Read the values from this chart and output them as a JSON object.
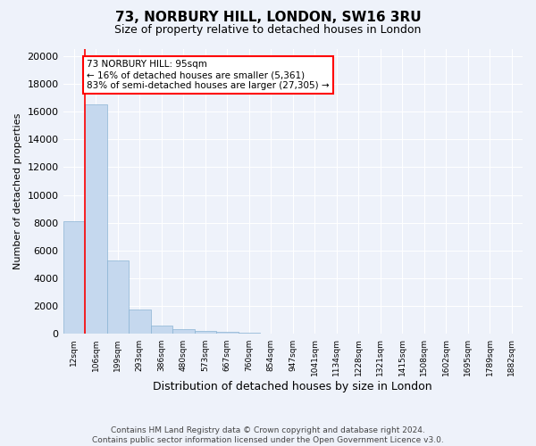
{
  "title": "73, NORBURY HILL, LONDON, SW16 3RU",
  "subtitle": "Size of property relative to detached houses in London",
  "xlabel": "Distribution of detached houses by size in London",
  "ylabel": "Number of detached properties",
  "footer_line1": "Contains HM Land Registry data © Crown copyright and database right 2024.",
  "footer_line2": "Contains public sector information licensed under the Open Government Licence v3.0.",
  "bar_labels": [
    "12sqm",
    "106sqm",
    "199sqm",
    "293sqm",
    "386sqm",
    "480sqm",
    "573sqm",
    "667sqm",
    "760sqm",
    "854sqm",
    "947sqm",
    "1041sqm",
    "1134sqm",
    "1228sqm",
    "1321sqm",
    "1415sqm",
    "1508sqm",
    "1602sqm",
    "1695sqm",
    "1789sqm",
    "1882sqm"
  ],
  "bar_values": [
    8100,
    16500,
    5300,
    1750,
    620,
    330,
    190,
    130,
    100,
    0,
    0,
    0,
    0,
    0,
    0,
    0,
    0,
    0,
    0,
    0,
    0
  ],
  "bar_color": "#c5d8ee",
  "bar_edge_color": "#8ab4d4",
  "red_line_x": 0.5,
  "property_label": "73 NORBURY HILL: 95sqm",
  "annotation_line1": "← 16% of detached houses are smaller (5,361)",
  "annotation_line2": "83% of semi-detached houses are larger (27,305) →",
  "ylim_max": 20500,
  "yticks": [
    0,
    2000,
    4000,
    6000,
    8000,
    10000,
    12000,
    14000,
    16000,
    18000,
    20000
  ],
  "ytick_labels": [
    "0",
    "2000",
    "4000",
    "6000",
    "8000",
    "10000",
    "12000",
    "14000",
    "16000",
    "18000",
    "20000"
  ],
  "bg_color": "#eef2fa",
  "grid_color": "#ffffff",
  "title_fontsize": 11,
  "subtitle_fontsize": 9,
  "ylabel_fontsize": 8,
  "xlabel_fontsize": 9
}
